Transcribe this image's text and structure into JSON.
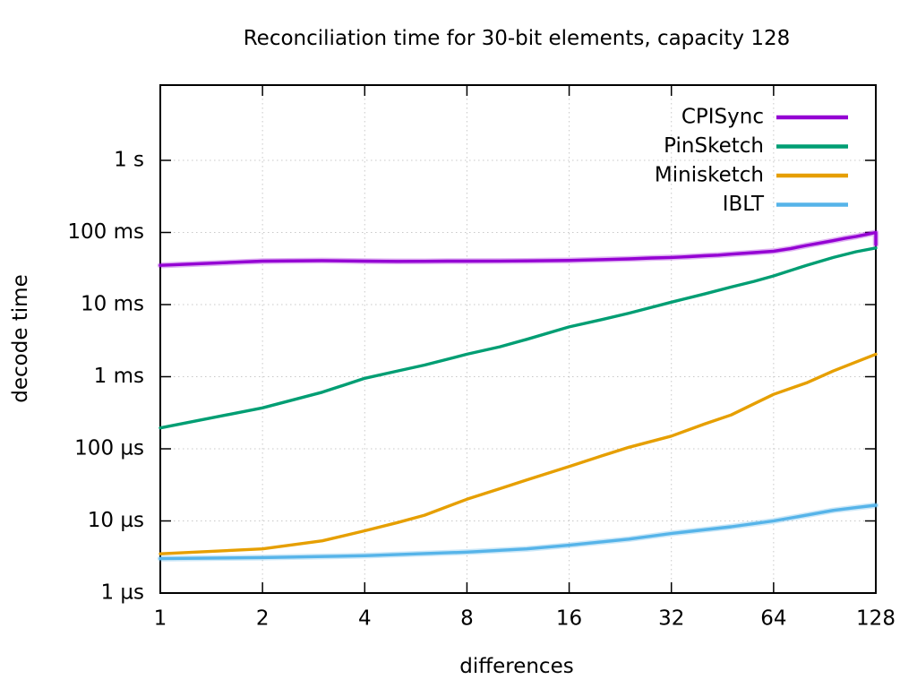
{
  "chart_data": {
    "type": "line",
    "title": "Reconciliation time for 30-bit elements, capacity 128",
    "xlabel": "differences",
    "ylabel": "decode time",
    "x_scale": "log2",
    "y_scale": "log10",
    "unit": "µs",
    "grid": true,
    "legend_position": "top-right-inside",
    "xlim": [
      1,
      128
    ],
    "ylim_us": [
      1,
      11000000
    ],
    "x_ticks": [
      1,
      2,
      4,
      8,
      16,
      32,
      64,
      128
    ],
    "y_ticks": [
      {
        "label": "1 s",
        "us": 1000000
      },
      {
        "label": "100 ms",
        "us": 100000
      },
      {
        "label": "10 ms",
        "us": 10000
      },
      {
        "label": "1 ms",
        "us": 1000
      },
      {
        "label": "100 µs",
        "us": 100
      },
      {
        "label": "10 µs",
        "us": 10
      },
      {
        "label": "1 µs",
        "us": 1
      }
    ],
    "series": [
      {
        "name": "CPISync",
        "color": "#9400d3",
        "halo": true,
        "points": [
          [
            1,
            35000
          ],
          [
            2,
            40000
          ],
          [
            3,
            40700
          ],
          [
            4,
            40000
          ],
          [
            5,
            39700
          ],
          [
            6,
            39800
          ],
          [
            7,
            40000
          ],
          [
            8,
            40000
          ],
          [
            10,
            40100
          ],
          [
            12,
            40400
          ],
          [
            14,
            40700
          ],
          [
            16,
            41000
          ],
          [
            20,
            42000
          ],
          [
            24,
            43000
          ],
          [
            28,
            44200
          ],
          [
            32,
            45000
          ],
          [
            36,
            46200
          ],
          [
            40,
            47600
          ],
          [
            44,
            48500
          ],
          [
            48,
            50000
          ],
          [
            56,
            52500
          ],
          [
            64,
            55000
          ],
          [
            72,
            60000
          ],
          [
            80,
            66000
          ],
          [
            88,
            71500
          ],
          [
            96,
            77000
          ],
          [
            104,
            83000
          ],
          [
            112,
            88000
          ],
          [
            120,
            94000
          ],
          [
            128,
            100000
          ],
          [
            128,
            68000
          ]
        ]
      },
      {
        "name": "PinSketch",
        "color": "#009e73",
        "halo": false,
        "points": [
          [
            1,
            195
          ],
          [
            2,
            370
          ],
          [
            3,
            610
          ],
          [
            4,
            950
          ],
          [
            5,
            1200
          ],
          [
            6,
            1450
          ],
          [
            8,
            2050
          ],
          [
            10,
            2600
          ],
          [
            12,
            3300
          ],
          [
            16,
            4900
          ],
          [
            20,
            6200
          ],
          [
            24,
            7600
          ],
          [
            32,
            10800
          ],
          [
            40,
            14000
          ],
          [
            48,
            17500
          ],
          [
            56,
            21000
          ],
          [
            64,
            25000
          ],
          [
            80,
            35000
          ],
          [
            96,
            45000
          ],
          [
            112,
            54000
          ],
          [
            128,
            61000
          ]
        ]
      },
      {
        "name": "Minisketch",
        "color": "#e69f00",
        "halo": false,
        "points": [
          [
            1,
            3.5
          ],
          [
            2,
            4.1
          ],
          [
            3,
            5.3
          ],
          [
            4,
            7.3
          ],
          [
            5,
            9.5
          ],
          [
            6,
            12
          ],
          [
            8,
            20
          ],
          [
            10,
            28
          ],
          [
            12,
            37
          ],
          [
            16,
            57
          ],
          [
            20,
            80
          ],
          [
            24,
            105
          ],
          [
            32,
            150
          ],
          [
            40,
            220
          ],
          [
            48,
            295
          ],
          [
            56,
            420
          ],
          [
            64,
            570
          ],
          [
            80,
            820
          ],
          [
            96,
            1200
          ],
          [
            112,
            1600
          ],
          [
            128,
            2050
          ]
        ]
      },
      {
        "name": "IBLT",
        "color": "#56b4e9",
        "halo": true,
        "points": [
          [
            1,
            3.0
          ],
          [
            2,
            3.1
          ],
          [
            4,
            3.3
          ],
          [
            8,
            3.7
          ],
          [
            12,
            4.1
          ],
          [
            16,
            4.6
          ],
          [
            24,
            5.6
          ],
          [
            32,
            6.7
          ],
          [
            48,
            8.3
          ],
          [
            64,
            10
          ],
          [
            80,
            12
          ],
          [
            96,
            14
          ],
          [
            112,
            15.3
          ],
          [
            128,
            16.5
          ]
        ]
      }
    ]
  }
}
